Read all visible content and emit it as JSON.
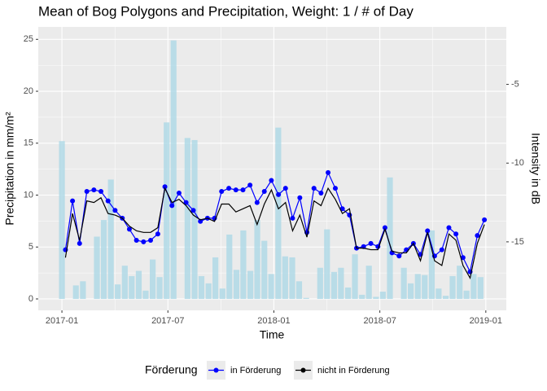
{
  "chart_data": {
    "type": "bar_line",
    "title": "Mean of Bog Polygons and Precipitation, Weight: 1 / # of Day",
    "x_label": "Time",
    "y_label": "Precipitation in mm/m²",
    "y2_label": "Intensity in dB",
    "legend_title": "Förderung",
    "legend_position": "bottom",
    "grid": true,
    "xlim": [
      -1.34,
      25.16
    ],
    "xticks": [
      {
        "value": 0,
        "label": "2017-01"
      },
      {
        "value": 6,
        "label": "2017-07"
      },
      {
        "value": 12,
        "label": "2018-01"
      },
      {
        "value": 18,
        "label": "2018-07"
      },
      {
        "value": 24,
        "label": "2019-01"
      }
    ],
    "ylim": [
      -1.1,
      26.2
    ],
    "yticks": [
      0,
      5,
      10,
      15,
      20,
      25
    ],
    "y2lim": [
      -19.35,
      -1.35
    ],
    "y2ticks": [
      -5,
      -10,
      -15
    ],
    "bars": {
      "color": "#add8e6",
      "x": [
        0,
        0.4,
        0.79,
        1.19,
        1.58,
        1.98,
        2.37,
        2.77,
        3.16,
        3.56,
        3.95,
        4.35,
        4.74,
        5.14,
        5.53,
        5.93,
        6.32,
        6.72,
        7.11,
        7.51,
        7.9,
        8.3,
        8.69,
        9.09,
        9.48,
        9.88,
        10.27,
        10.67,
        11.06,
        11.46,
        11.85,
        12.25,
        12.64,
        13.04,
        13.43,
        13.83,
        14.22,
        14.62,
        15.01,
        15.41,
        15.8,
        16.2,
        16.59,
        16.99,
        17.38,
        17.78,
        18.17,
        18.57,
        18.96,
        19.36,
        19.75,
        20.15,
        20.54,
        20.94,
        21.33,
        21.73,
        22.12,
        22.52,
        22.91,
        23.31,
        23.7
      ],
      "values": [
        15.2,
        0,
        1.3,
        1.7,
        0,
        6.0,
        7.6,
        11.5,
        1.4,
        3.2,
        2.2,
        2.7,
        0.8,
        3.8,
        2.1,
        17.0,
        24.9,
        0,
        15.5,
        15.3,
        2.2,
        1.5,
        4.0,
        1.0,
        6.2,
        2.8,
        6.6,
        2.7,
        7.6,
        5.6,
        2.4,
        16.5,
        4.1,
        4.0,
        1.7,
        0.1,
        0,
        3.0,
        6.7,
        2.6,
        3.0,
        1.1,
        4.3,
        0.4,
        3.2,
        0.2,
        0.7,
        11.7,
        0,
        3.0,
        1.5,
        2.4,
        2.3,
        6.6,
        1.0,
        0.3,
        2.2,
        3.2,
        0.8,
        2.4,
        2.1
      ]
    },
    "x": [
      0.2,
      0.6,
      1.0,
      1.41,
      1.81,
      2.21,
      2.61,
      3.01,
      3.42,
      3.82,
      4.22,
      4.62,
      5.02,
      5.43,
      5.83,
      6.23,
      6.63,
      7.03,
      7.44,
      7.84,
      8.24,
      8.64,
      9.04,
      9.45,
      9.85,
      10.25,
      10.65,
      11.05,
      11.46,
      11.86,
      12.26,
      12.66,
      13.06,
      13.47,
      13.87,
      14.27,
      14.67,
      15.07,
      15.48,
      15.88,
      16.28,
      16.68,
      17.08,
      17.49,
      17.89,
      18.29,
      18.69,
      19.09,
      19.5,
      19.9,
      20.3,
      20.7,
      21.1,
      21.51,
      21.91,
      22.31,
      22.71,
      23.11,
      23.52,
      23.92
    ],
    "series": [
      {
        "name": "in Förderung",
        "color": "#0000ff",
        "axis": "y2",
        "markers": true,
        "values": [
          -15.5,
          -12.4,
          -15.1,
          -11.8,
          -11.7,
          -11.8,
          -12.4,
          -13.0,
          -13.5,
          -14.2,
          -14.9,
          -15.0,
          -14.9,
          -14.5,
          -11.5,
          -12.7,
          -11.9,
          -12.5,
          -13.0,
          -13.7,
          -13.5,
          -13.5,
          -11.8,
          -11.6,
          -11.7,
          -11.7,
          -11.4,
          -12.5,
          -11.8,
          -11.1,
          -12.0,
          -11.6,
          -13.5,
          -12.2,
          -14.4,
          -11.6,
          -11.9,
          -10.6,
          -11.6,
          -12.9,
          -13.3,
          -15.4,
          -15.3,
          -15.1,
          -15.3,
          -14.1,
          -15.7,
          -15.9,
          -15.5,
          -15.1,
          -15.8,
          -14.3,
          -15.9,
          -15.5,
          -14.1,
          -14.5,
          -16.0,
          -16.9,
          -14.6,
          -13.6
        ]
      },
      {
        "name": "nicht in Förderung",
        "color": "#000000",
        "axis": "y2",
        "markers": false,
        "values": [
          -16.0,
          -13.2,
          -14.9,
          -12.4,
          -12.5,
          -12.2,
          -13.2,
          -13.3,
          -13.5,
          -14.0,
          -14.3,
          -14.4,
          -14.4,
          -14.1,
          -11.6,
          -12.5,
          -12.3,
          -12.7,
          -13.3,
          -13.6,
          -13.5,
          -13.7,
          -12.6,
          -12.6,
          -13.1,
          -12.9,
          -12.7,
          -13.9,
          -12.6,
          -11.7,
          -12.9,
          -12.5,
          -14.3,
          -13.3,
          -14.7,
          -12.4,
          -12.7,
          -11.6,
          -12.3,
          -13.2,
          -12.9,
          -15.4,
          -15.4,
          -15.5,
          -15.5,
          -14.2,
          -15.6,
          -15.7,
          -15.7,
          -15.1,
          -16.2,
          -14.4,
          -16.2,
          -16.5,
          -14.5,
          -14.9,
          -16.5,
          -17.3,
          -15.1,
          -13.9
        ]
      }
    ]
  }
}
